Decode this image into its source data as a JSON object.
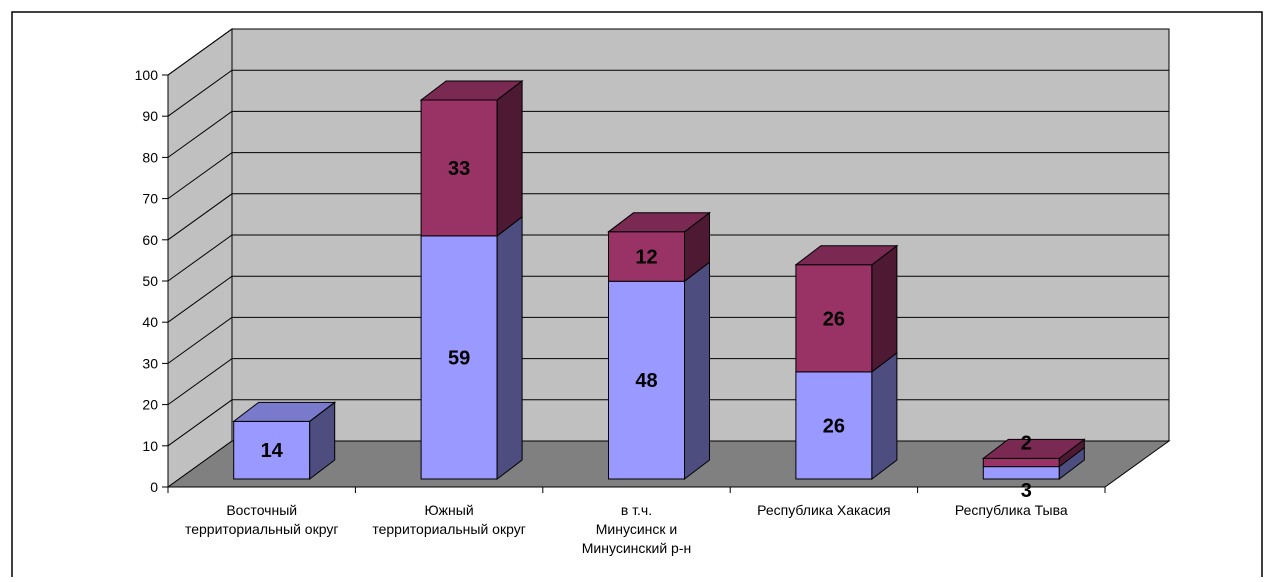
{
  "chart_data": {
    "type": "bar",
    "stacked": true,
    "three_d": true,
    "categories": [
      [
        "Восточный",
        "территориальный округ"
      ],
      [
        "Южный",
        "территориальный округ"
      ],
      [
        "в т.ч.",
        "Минусинск и",
        "Минусинский р-н"
      ],
      [
        "Республика Хакасия"
      ],
      [
        "Республика Тыва"
      ]
    ],
    "series": [
      {
        "values": [
          14,
          59,
          48,
          26,
          3
        ],
        "color": "#9999ff",
        "side_color": "#4d4d80",
        "top_color": "#7a7acc"
      },
      {
        "values": [
          0,
          33,
          12,
          26,
          2
        ],
        "color": "#993366",
        "side_color": "#4d1933",
        "top_color": "#7a2952"
      }
    ],
    "ylim": [
      0,
      100
    ],
    "yticks": [
      0,
      10,
      20,
      30,
      40,
      50,
      60,
      70,
      80,
      90,
      100
    ],
    "grid": true,
    "legend": "none",
    "colors": {
      "wall": "#c0c0c0",
      "floor": "#808080",
      "grid": "#000000"
    }
  }
}
